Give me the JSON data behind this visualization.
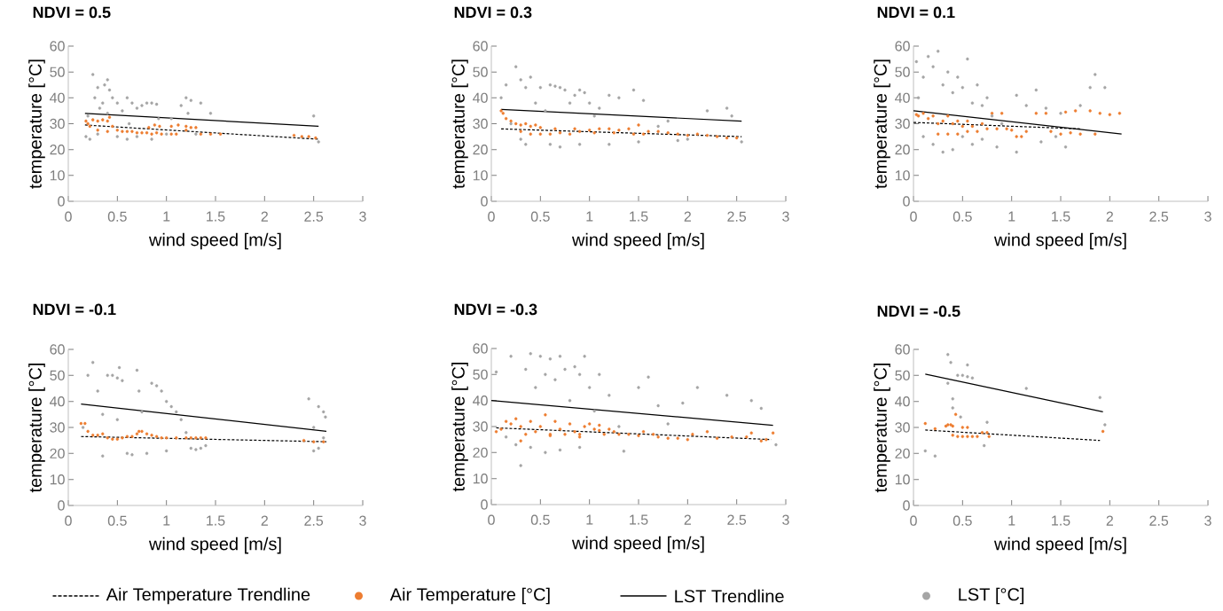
{
  "chart_data": [
    {
      "type": "scatter",
      "title": "NDVI = 0.5",
      "xlabel": "wind speed [m/s]",
      "ylabel": "temperature [°C]",
      "xlim": [
        0,
        3
      ],
      "xticks": [
        0,
        0.5,
        1,
        1.5,
        2,
        2.5,
        3
      ],
      "ylim": [
        0,
        60
      ],
      "yticks": [
        0,
        10,
        20,
        30,
        40,
        50,
        60
      ],
      "series": [
        {
          "type": "line",
          "line_style": "dashed",
          "marker": "none",
          "color": "#000000",
          "x": [
            0.17,
            2.55
          ],
          "values": [
            29.5,
            24
          ]
        },
        {
          "marker": "circle",
          "color": "#ed7d31",
          "x": [
            0.18,
            0.2,
            0.22,
            0.25,
            0.3,
            0.35,
            0.4,
            0.42,
            0.45,
            0.3,
            0.4,
            0.5,
            0.55,
            0.6,
            0.65,
            0.7,
            0.75,
            0.8,
            0.85,
            0.9,
            0.95,
            0.82,
            0.88,
            0.93,
            1.05,
            1.1,
            1.05,
            1.12,
            1.2,
            1.25,
            1.3,
            1.2,
            1.35,
            1.45,
            1.55,
            2.3,
            2.38,
            2.45,
            2.52
          ],
          "values": [
            31,
            30,
            29,
            31.5,
            31,
            31.5,
            31,
            32.5,
            29,
            27.5,
            27,
            27.5,
            27,
            27,
            27,
            26.5,
            26.5,
            26.5,
            26,
            26.5,
            26,
            28.5,
            29.5,
            29,
            26,
            26,
            29,
            29.5,
            29,
            28.5,
            28.5,
            27.5,
            26,
            26,
            26,
            25.5,
            25,
            25,
            24.5
          ]
        },
        {
          "type": "line",
          "line_style": "solid",
          "marker": "none",
          "color": "#000000",
          "x": [
            0.17,
            2.55
          ],
          "values": [
            34,
            29
          ]
        },
        {
          "marker": "circle",
          "color": "#a5a5a5",
          "x": [
            0.18,
            0.2,
            0.22,
            0.25,
            0.27,
            0.3,
            0.32,
            0.35,
            0.37,
            0.4,
            0.42,
            0.4,
            0.45,
            0.5,
            0.55,
            0.6,
            0.62,
            0.65,
            0.7,
            0.75,
            0.8,
            0.85,
            0.9,
            0.92,
            0.85,
            0.7,
            0.5,
            1.0,
            1.05,
            1.15,
            1.2,
            1.22,
            1.25,
            1.3,
            1.35,
            1.45,
            2.5,
            2.55,
            0.3,
            0.6
          ],
          "values": [
            25,
            33,
            24,
            49,
            40,
            44,
            36,
            38,
            45,
            47,
            43,
            34,
            40,
            38,
            35,
            40,
            30,
            38,
            36,
            37,
            38,
            38,
            37.5,
            32,
            24,
            25,
            25,
            26,
            32,
            37,
            40,
            34,
            39,
            26,
            38,
            34,
            33,
            23,
            26,
            24
          ]
        }
      ]
    },
    {
      "type": "scatter",
      "title": "NDVI = 0.3",
      "xlabel": "wind speed [m/s]",
      "ylabel": "temperature [°C]",
      "xlim": [
        0,
        3
      ],
      "xticks": [
        0,
        0.5,
        1,
        1.5,
        2,
        2.5,
        3
      ],
      "ylim": [
        0,
        60
      ],
      "yticks": [
        0,
        10,
        20,
        30,
        40,
        50,
        60
      ],
      "series": [
        {
          "type": "line",
          "line_style": "dashed",
          "marker": "none",
          "color": "#000000",
          "x": [
            0.1,
            2.55
          ],
          "values": [
            28,
            25
          ]
        },
        {
          "marker": "circle",
          "color": "#ed7d31",
          "x": [
            0.1,
            0.12,
            0.15,
            0.2,
            0.25,
            0.3,
            0.35,
            0.4,
            0.45,
            0.5,
            0.3,
            0.4,
            0.5,
            0.6,
            0.7,
            0.8,
            0.9,
            1.0,
            1.1,
            1.2,
            1.3,
            1.4,
            1.5,
            1.45,
            1.55,
            1.6,
            1.7,
            1.8,
            1.9,
            2.0,
            2.1,
            2.2,
            2.3,
            2.4,
            2.5,
            0.65,
            0.85,
            1.05,
            1.25
          ],
          "values": [
            35,
            34,
            32,
            31,
            30,
            29.5,
            30,
            29,
            29.5,
            28.5,
            27,
            26,
            26,
            26,
            26.5,
            26,
            27,
            27.5,
            28,
            28,
            27.5,
            28,
            29.5,
            26,
            26,
            27,
            27,
            26.5,
            26,
            25.5,
            26,
            25.5,
            25,
            24.5,
            24.5,
            28,
            28,
            26.5,
            26.5
          ]
        },
        {
          "type": "line",
          "line_style": "solid",
          "marker": "none",
          "color": "#000000",
          "x": [
            0.1,
            2.55
          ],
          "values": [
            35.5,
            31
          ]
        },
        {
          "marker": "circle",
          "color": "#a5a5a5",
          "x": [
            0.1,
            0.15,
            0.2,
            0.25,
            0.3,
            0.35,
            0.3,
            0.35,
            0.4,
            0.45,
            0.5,
            0.55,
            0.6,
            0.65,
            0.7,
            0.75,
            0.8,
            0.85,
            0.9,
            0.95,
            1.0,
            1.05,
            1.1,
            1.2,
            1.3,
            1.45,
            1.55,
            1.7,
            1.8,
            1.9,
            2.0,
            2.2,
            2.4,
            2.45,
            0.6,
            0.7,
            0.9,
            1.2,
            1.5,
            2.55
          ],
          "values": [
            40,
            45,
            30,
            52,
            47,
            44,
            24,
            22,
            48,
            38,
            44,
            35,
            45,
            44.5,
            44,
            43,
            38,
            41,
            43,
            42,
            38,
            33,
            36,
            41,
            40,
            43,
            39,
            29,
            31,
            23.5,
            24,
            35,
            36,
            33,
            22,
            21,
            22,
            22,
            23,
            23
          ]
        }
      ]
    },
    {
      "type": "scatter",
      "title": "NDVI = 0.1",
      "xlabel": "wind speed [m/s]",
      "ylabel": "temperature [°C]",
      "xlim": [
        0,
        3
      ],
      "xticks": [
        0,
        0.5,
        1,
        1.5,
        2,
        2.5,
        3
      ],
      "ylim": [
        0,
        60
      ],
      "yticks": [
        0,
        10,
        20,
        30,
        40,
        50,
        60
      ],
      "series": [
        {
          "type": "line",
          "line_style": "dashed",
          "marker": "none",
          "color": "#000000",
          "x": [
            0,
            1.7
          ],
          "values": [
            30.5,
            28
          ]
        },
        {
          "marker": "circle",
          "color": "#ed7d31",
          "x": [
            0.03,
            0.05,
            0.1,
            0.15,
            0.2,
            0.25,
            0.3,
            0.35,
            0.4,
            0.45,
            0.5,
            0.55,
            0.6,
            0.25,
            0.35,
            0.45,
            0.55,
            0.65,
            0.7,
            0.75,
            0.8,
            0.85,
            0.9,
            0.95,
            1.0,
            1.05,
            1.1,
            1.15,
            1.25,
            1.35,
            1.4,
            1.5,
            1.55,
            1.65,
            1.7,
            1.8,
            1.85,
            1.9,
            2.0,
            2.1,
            1.6
          ],
          "values": [
            33.5,
            33,
            34,
            32,
            33,
            30,
            31,
            33,
            30,
            31,
            29,
            31,
            29,
            26,
            26,
            26,
            27,
            27,
            30,
            28,
            34,
            28,
            34,
            28,
            27.5,
            25,
            25,
            27,
            34,
            34,
            27,
            26,
            34.5,
            35,
            26,
            35,
            26,
            34,
            33.5,
            34,
            26.5
          ]
        },
        {
          "type": "line",
          "line_style": "solid",
          "marker": "none",
          "color": "#000000",
          "x": [
            0,
            2.12
          ],
          "values": [
            35,
            26
          ]
        },
        {
          "marker": "circle",
          "color": "#a5a5a5",
          "x": [
            0.03,
            0.05,
            0.1,
            0.15,
            0.2,
            0.25,
            0.3,
            0.35,
            0.4,
            0.45,
            0.5,
            0.55,
            0.6,
            0.65,
            0.7,
            0.75,
            0.8,
            0.3,
            0.4,
            0.5,
            0.6,
            0.7,
            0.85,
            1.05,
            1.05,
            1.15,
            1.25,
            1.35,
            1.45,
            1.5,
            1.55,
            1.7,
            1.8,
            1.85,
            1.95,
            0.1,
            0.2,
            0.9,
            1.3
          ],
          "values": [
            54,
            40,
            48,
            56,
            52,
            58,
            45,
            50,
            42,
            48,
            44,
            55,
            38,
            45,
            37,
            40,
            33,
            19,
            20,
            25,
            22,
            24,
            21,
            41,
            19,
            37,
            43,
            36,
            25,
            34,
            21,
            37,
            44,
            49,
            44,
            25,
            22,
            30,
            23
          ]
        }
      ]
    },
    {
      "type": "scatter",
      "title": "NDVI = -0.1",
      "xlabel": "wind speed [m/s]",
      "ylabel": "temperature [°C]",
      "xlim": [
        0,
        3
      ],
      "xticks": [
        0,
        0.5,
        1,
        1.5,
        2,
        2.5,
        3
      ],
      "ylim": [
        0,
        60
      ],
      "yticks": [
        0,
        10,
        20,
        30,
        40,
        50,
        60
      ],
      "series": [
        {
          "type": "line",
          "line_style": "dashed",
          "marker": "none",
          "color": "#000000",
          "x": [
            0.13,
            2.63
          ],
          "values": [
            26.5,
            24.5
          ]
        },
        {
          "marker": "circle",
          "color": "#ed7d31",
          "x": [
            0.13,
            0.17,
            0.2,
            0.25,
            0.3,
            0.35,
            0.4,
            0.45,
            0.5,
            0.55,
            0.6,
            0.65,
            0.7,
            0.72,
            0.75,
            0.8,
            0.85,
            0.9,
            0.95,
            1.0,
            1.1,
            1.2,
            1.25,
            1.3,
            1.35,
            1.4,
            2.4,
            2.5,
            2.6
          ],
          "values": [
            31.5,
            31.5,
            28.5,
            27,
            27,
            27.5,
            26,
            25.5,
            25.5,
            26,
            26.5,
            26.5,
            27.5,
            28.5,
            28.5,
            27.5,
            27,
            26.5,
            26,
            26,
            26,
            26,
            26,
            26,
            26,
            26,
            25,
            24.5,
            24.5
          ]
        },
        {
          "type": "line",
          "line_style": "solid",
          "marker": "none",
          "color": "#000000",
          "x": [
            0.13,
            2.63
          ],
          "values": [
            39,
            28.5
          ]
        },
        {
          "marker": "circle",
          "color": "#a5a5a5",
          "x": [
            0.15,
            0.2,
            0.25,
            0.3,
            0.35,
            0.35,
            0.4,
            0.45,
            0.5,
            0.52,
            0.55,
            0.6,
            0.65,
            0.7,
            0.72,
            0.75,
            0.8,
            0.85,
            0.9,
            0.95,
            1.0,
            1.05,
            1.1,
            1.15,
            1.2,
            1.25,
            1.3,
            1.35,
            1.4,
            1.0,
            0.5,
            2.45,
            2.5,
            2.55,
            2.6,
            2.55,
            2.6,
            2.5,
            2.62
          ],
          "values": [
            30,
            50,
            55,
            44,
            35,
            19,
            50,
            50,
            49,
            53,
            48,
            20,
            19.5,
            52,
            44,
            36,
            20,
            47,
            46,
            44,
            40,
            38,
            36,
            33,
            28,
            22,
            21.5,
            22,
            23,
            21,
            33,
            41,
            30,
            38,
            36,
            22,
            26,
            21,
            34
          ]
        }
      ]
    },
    {
      "type": "scatter",
      "title": "NDVI = -0.3",
      "xlabel": "wind speed [m/s]",
      "ylabel": "temperature [°C]",
      "xlim": [
        0,
        3
      ],
      "xticks": [
        0,
        0.5,
        1,
        1.5,
        2,
        2.5,
        3
      ],
      "ylim": [
        0,
        60
      ],
      "yticks": [
        0,
        10,
        20,
        30,
        40,
        50,
        60
      ],
      "series": [
        {
          "type": "line",
          "line_style": "dashed",
          "marker": "none",
          "color": "#000000",
          "x": [
            0.05,
            2.85
          ],
          "values": [
            29.5,
            25
          ]
        },
        {
          "marker": "circle",
          "color": "#ed7d31",
          "x": [
            0.05,
            0.1,
            0.15,
            0.2,
            0.25,
            0.3,
            0.35,
            0.4,
            0.45,
            0.5,
            0.55,
            0.6,
            0.65,
            0.7,
            0.75,
            0.8,
            0.85,
            0.9,
            0.95,
            1.0,
            1.05,
            1.1,
            1.15,
            1.2,
            1.25,
            1.3,
            1.4,
            1.5,
            1.55,
            1.65,
            1.7,
            1.8,
            1.9,
            2.0,
            2.05,
            2.2,
            2.3,
            2.45,
            2.6,
            2.65,
            2.75,
            2.8,
            2.87,
            0.3,
            0.6,
            0.9,
            1.1
          ],
          "values": [
            28,
            29,
            32,
            31,
            33,
            30,
            27,
            32,
            28,
            30,
            34.5,
            27,
            32,
            29,
            27,
            31,
            28,
            27,
            30,
            31,
            29,
            28.5,
            27,
            29,
            28,
            27,
            27,
            26.5,
            28,
            27,
            26,
            25.5,
            25.5,
            25,
            27,
            28,
            25.5,
            26,
            26,
            27.5,
            24.5,
            25,
            27.5,
            24.5,
            26.5,
            26,
            30.5
          ]
        },
        {
          "type": "line",
          "line_style": "solid",
          "marker": "none",
          "color": "#000000",
          "x": [
            0,
            2.87
          ],
          "values": [
            40,
            30.5
          ]
        },
        {
          "marker": "circle",
          "color": "#a5a5a5",
          "x": [
            0.05,
            0.2,
            0.25,
            0.3,
            0.35,
            0.4,
            0.45,
            0.5,
            0.55,
            0.6,
            0.65,
            0.7,
            0.75,
            0.8,
            0.85,
            0.9,
            0.95,
            1.0,
            1.05,
            1.1,
            1.2,
            1.35,
            1.5,
            1.6,
            1.7,
            1.8,
            1.95,
            2.1,
            2.4,
            2.65,
            2.75,
            0.4,
            0.55,
            0.7,
            0.9,
            0.15,
            1.3,
            2.9
          ],
          "values": [
            51,
            57,
            23,
            15,
            52,
            58,
            45,
            57,
            50,
            56,
            48,
            57,
            52,
            40,
            53,
            50,
            57,
            45,
            36,
            50,
            42,
            20.5,
            45,
            49,
            38,
            31,
            39,
            45,
            42,
            40,
            37,
            22,
            20,
            21,
            22,
            26,
            30,
            23
          ]
        }
      ]
    },
    {
      "type": "scatter",
      "title": "NDVI = -0.5",
      "xlabel": "wind speed [m/s]",
      "ylabel": "temperature [°C]",
      "xlim": [
        0,
        3
      ],
      "xticks": [
        0,
        0.5,
        1,
        1.5,
        2,
        2.5,
        3
      ],
      "ylim": [
        0,
        60
      ],
      "yticks": [
        0,
        10,
        20,
        30,
        40,
        50,
        60
      ],
      "legend": "bottom",
      "series": [
        {
          "name": "Air Temperature Trendline",
          "type": "line",
          "line_style": "dashed",
          "marker": "none",
          "color": "#000000",
          "x": [
            0.12,
            1.9
          ],
          "values": [
            29,
            25
          ]
        },
        {
          "name": "Air Temperature [°C]",
          "marker": "circle",
          "color": "#ed7d31",
          "x": [
            0.12,
            0.22,
            0.33,
            0.35,
            0.38,
            0.4,
            0.4,
            0.45,
            0.43,
            0.5,
            0.55,
            0.5,
            0.55,
            0.6,
            0.65,
            0.7,
            0.75,
            0.77,
            1.93
          ],
          "values": [
            31.5,
            29.5,
            30.5,
            31,
            31,
            30.5,
            27,
            26.5,
            35,
            30,
            30,
            26.5,
            26.5,
            26.5,
            26.5,
            28,
            28,
            26.5,
            28.5
          ]
        },
        {
          "name": "LST Trendline",
          "type": "line",
          "line_style": "solid",
          "marker": "none",
          "color": "#000000",
          "x": [
            0.12,
            1.93
          ],
          "values": [
            50.5,
            36
          ]
        },
        {
          "name": "LST [°C]",
          "marker": "circle",
          "color": "#a5a5a5",
          "x": [
            0.12,
            0.22,
            0.35,
            0.35,
            0.38,
            0.4,
            0.4,
            0.45,
            0.5,
            0.55,
            0.6,
            0.55,
            0.48,
            0.72,
            0.75,
            1.15,
            1.9,
            1.95
          ],
          "values": [
            21,
            19,
            58,
            47,
            55,
            41,
            37.5,
            50,
            50,
            49.5,
            49,
            54,
            34,
            23,
            32,
            45,
            41.5,
            31
          ]
        }
      ]
    }
  ]
}
